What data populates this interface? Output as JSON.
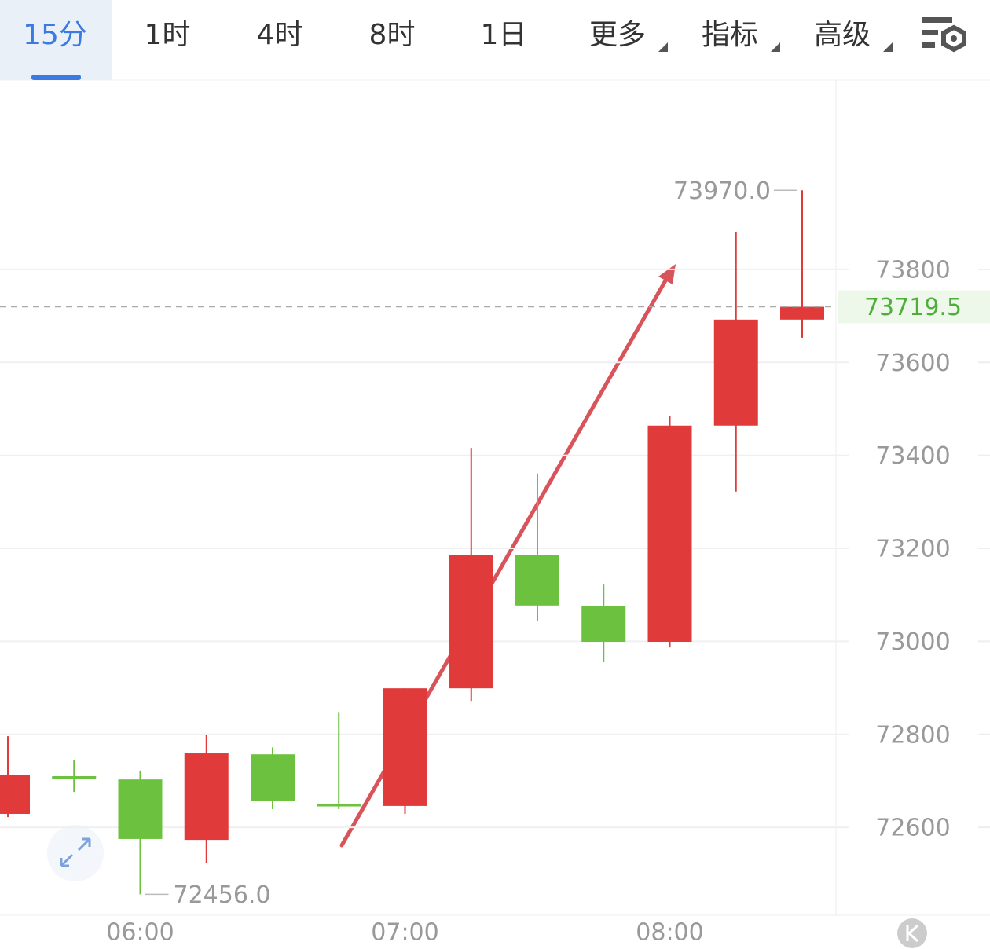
{
  "tabs": {
    "items": [
      "15分",
      "1时",
      "4时",
      "8时",
      "1日",
      "更多",
      "指标",
      "高级"
    ],
    "active": 0
  },
  "chart_data": {
    "type": "candlestick",
    "categories": [
      null,
      null,
      "06:00",
      null,
      null,
      null,
      "07:00",
      null,
      null,
      null,
      "08:00",
      null,
      null
    ],
    "open": [
      72629,
      72710,
      72703,
      72573,
      72757,
      72651,
      72646,
      72899,
      73185,
      73075,
      72999,
      73464,
      73692
    ],
    "high": [
      72796,
      72744,
      72722,
      72798,
      72772,
      72848,
      72899,
      73416,
      73361,
      73122,
      73484,
      73881,
      73970
    ],
    "low": [
      72622,
      72676,
      72456,
      72524,
      72639,
      72639,
      72629,
      72872,
      73043,
      72955,
      72987,
      73322,
      73653
    ],
    "close": [
      72712,
      72705,
      72575,
      72759,
      72656,
      72645,
      72899,
      73185,
      73077,
      72999,
      73464,
      73692,
      73719.5
    ],
    "up_color": "#e03a3a",
    "down_color": "#6cc13f",
    "ylim": [
      72411,
      74207
    ],
    "yticks": [
      72600,
      72800,
      73000,
      73200,
      73400,
      73600,
      73800
    ],
    "grid": true,
    "last_price": 73719.5,
    "high_label": {
      "value": 73970,
      "label": "73970.0"
    },
    "low_label": {
      "value": 72456,
      "label": "72456.0"
    }
  }
}
